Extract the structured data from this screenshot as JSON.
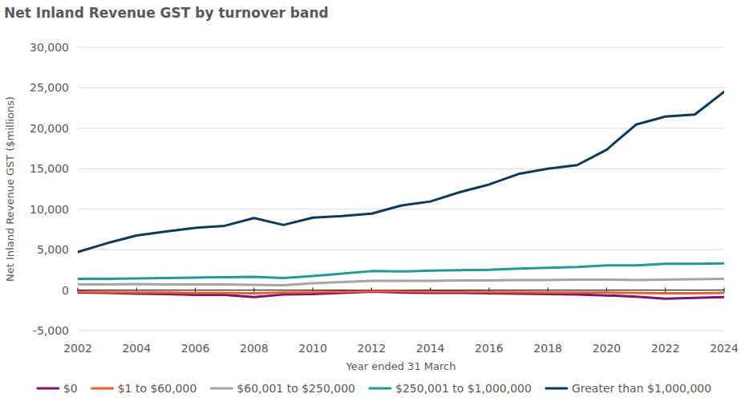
{
  "chart_data": {
    "type": "line",
    "title": "Net Inland Revenue GST by turnover band",
    "x_label": "Year ended 31 March",
    "y_label": "Net Inland Revenue GST ($millions)",
    "x": [
      2002,
      2003,
      2004,
      2005,
      2006,
      2007,
      2008,
      2009,
      2010,
      2011,
      2012,
      2013,
      2014,
      2015,
      2016,
      2017,
      2018,
      2019,
      2020,
      2021,
      2022,
      2023,
      2024
    ],
    "xlim": [
      2002,
      2024
    ],
    "xticks": [
      2002,
      2004,
      2006,
      2008,
      2010,
      2012,
      2014,
      2016,
      2018,
      2020,
      2022,
      2024
    ],
    "ylim": [
      -5000,
      30000
    ],
    "yticks": [
      {
        "value": -5000,
        "label": "-5,000"
      },
      0,
      {
        "value": 5000,
        "label": "5,000"
      },
      {
        "value": 10000,
        "label": "10,000"
      },
      {
        "value": 15000,
        "label": "15,000"
      },
      {
        "value": 20000,
        "label": "20,000"
      },
      {
        "value": 25000,
        "label": "25,000"
      },
      {
        "value": 30000,
        "label": "30,000"
      }
    ],
    "grid": true,
    "legend": "bottom",
    "series": [
      {
        "name": "$0",
        "color": "#7b1670",
        "values": [
          -300,
          -350,
          -450,
          -500,
          -600,
          -600,
          -850,
          -550,
          -500,
          -350,
          -200,
          -300,
          -350,
          -350,
          -400,
          -450,
          -500,
          -550,
          -650,
          -800,
          -1050,
          -950,
          -850
        ]
      },
      {
        "name": "$1 to $60,000",
        "color": "#f15a29",
        "values": [
          -200,
          -250,
          -300,
          -300,
          -350,
          -350,
          -400,
          -300,
          -250,
          -200,
          -150,
          -150,
          -200,
          -200,
          -250,
          -250,
          -300,
          -300,
          -300,
          -350,
          -400,
          -400,
          -350
        ]
      },
      {
        "name": "$60,001 to $250,000",
        "color": "#a6a6a6",
        "values": [
          700,
          700,
          750,
          700,
          700,
          700,
          650,
          600,
          850,
          1000,
          1150,
          1150,
          1150,
          1200,
          1200,
          1250,
          1250,
          1300,
          1300,
          1250,
          1300,
          1350,
          1400
        ]
      },
      {
        "name": "$250,001 to $1,000,000",
        "color": "#1d9a9a",
        "values": [
          1400,
          1400,
          1450,
          1500,
          1550,
          1600,
          1650,
          1500,
          1750,
          2050,
          2350,
          2300,
          2400,
          2450,
          2500,
          2650,
          2750,
          2850,
          3050,
          3050,
          3250,
          3250,
          3300
        ]
      },
      {
        "name": "Greater than $1,000,000",
        "color": "#0b3b5c",
        "values": [
          4700,
          5800,
          6750,
          7250,
          7700,
          7950,
          8900,
          8050,
          8950,
          9150,
          9450,
          10450,
          10950,
          12100,
          13050,
          14350,
          15000,
          15450,
          17350,
          20450,
          21450,
          21700,
          24500
        ]
      }
    ]
  }
}
